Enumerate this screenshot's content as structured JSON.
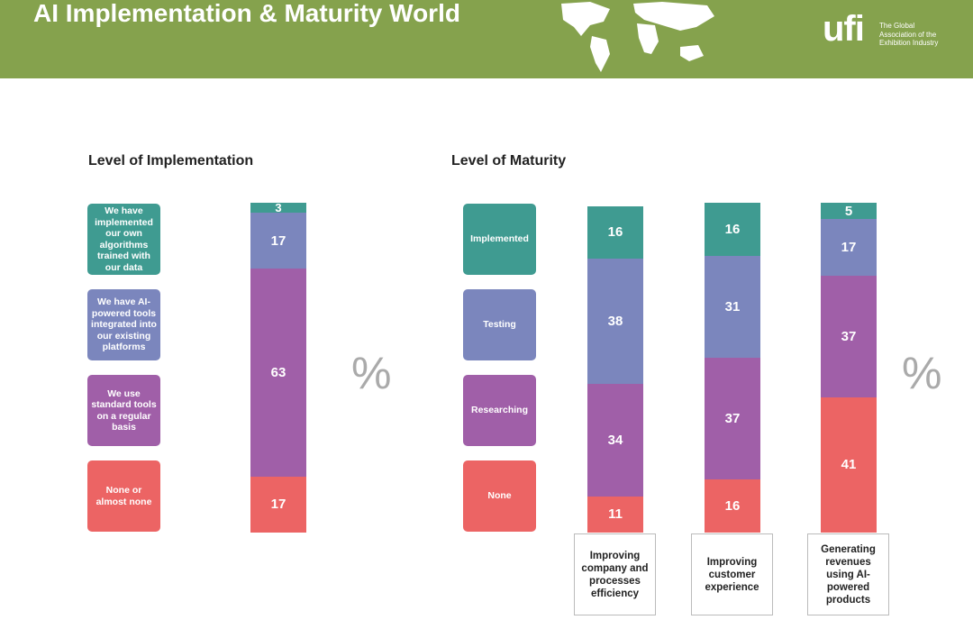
{
  "header": {
    "title": "AI Implementation & Maturity World",
    "logo": "ufi",
    "tagline": "The Global Association of the Exhibition Industry"
  },
  "chart_data": [
    {
      "type": "stacked-bar",
      "title": "Level of Implementation",
      "unit": "%",
      "categories": [
        null
      ],
      "ylim": [
        0,
        100
      ],
      "series": [
        {
          "name": "We have implemented our own algorithms trained with our data",
          "color": "#3f9b91",
          "values": [
            3
          ]
        },
        {
          "name": "We have AI-powered tools integrated into our existing platforms",
          "color": "#7b86bd",
          "values": [
            17
          ]
        },
        {
          "name": "We use standard tools on a regular basis",
          "color": "#a05fa8",
          "values": [
            63
          ]
        },
        {
          "name": "None or almost none",
          "color": "#ec6464",
          "values": [
            17
          ]
        }
      ]
    },
    {
      "type": "stacked-bar",
      "title": "Level of Maturity",
      "unit": "%",
      "categories": [
        "Improving company and processes efficiency",
        "Improving customer experience",
        "Generating revenues using AI-powered products"
      ],
      "ylim": [
        0,
        100
      ],
      "series": [
        {
          "name": "Implemented",
          "color": "#3f9b91",
          "values": [
            16,
            16,
            5
          ]
        },
        {
          "name": "Testing",
          "color": "#7b86bd",
          "values": [
            38,
            31,
            17
          ]
        },
        {
          "name": "Researching",
          "color": "#a05fa8",
          "values": [
            34,
            37,
            37
          ]
        },
        {
          "name": "None",
          "color": "#ec6464",
          "values": [
            11,
            16,
            41
          ]
        }
      ]
    }
  ]
}
